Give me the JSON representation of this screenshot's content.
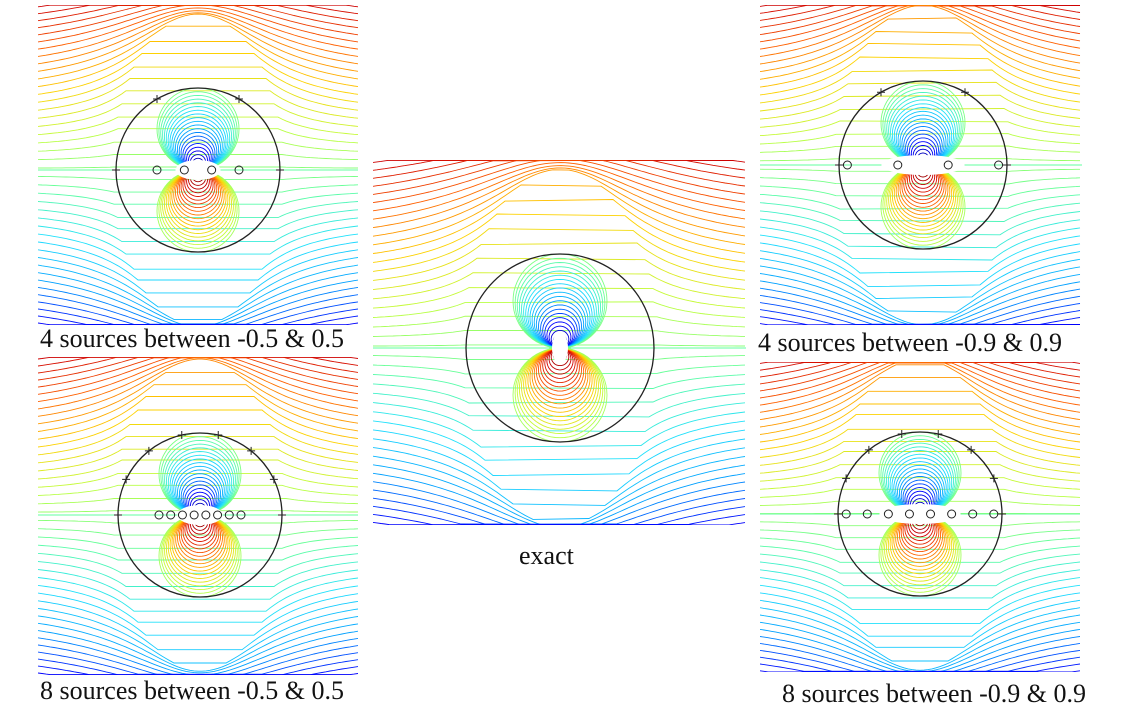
{
  "panels": [
    {
      "id": "p4-05",
      "caption": "4 sources between -0.5 & 0.5",
      "source_range": 0.5,
      "sources": 4,
      "boundary_points": 4
    },
    {
      "id": "p8-05",
      "caption": "8 sources between -0.5 & 0.5",
      "source_range": 0.5,
      "sources": 8,
      "boundary_points": 8
    },
    {
      "id": "exact",
      "caption": "exact",
      "source_range": 0,
      "sources": 0,
      "boundary_points": 0
    },
    {
      "id": "p4-09",
      "caption": "4 sources between -0.9 & 0.9",
      "source_range": 0.9,
      "sources": 4,
      "boundary_points": 4
    },
    {
      "id": "p8-09",
      "caption": "8 sources between -0.9 & 0.9",
      "source_range": 0.9,
      "sources": 8,
      "boundary_points": 8
    }
  ],
  "colormap": [
    "#00008f",
    "#0000ff",
    "#00a0ff",
    "#20e0ff",
    "#60ff9f",
    "#c0ff40",
    "#ffd000",
    "#ff6000",
    "#d00000",
    "#800000"
  ],
  "circle_color": "#222222"
}
